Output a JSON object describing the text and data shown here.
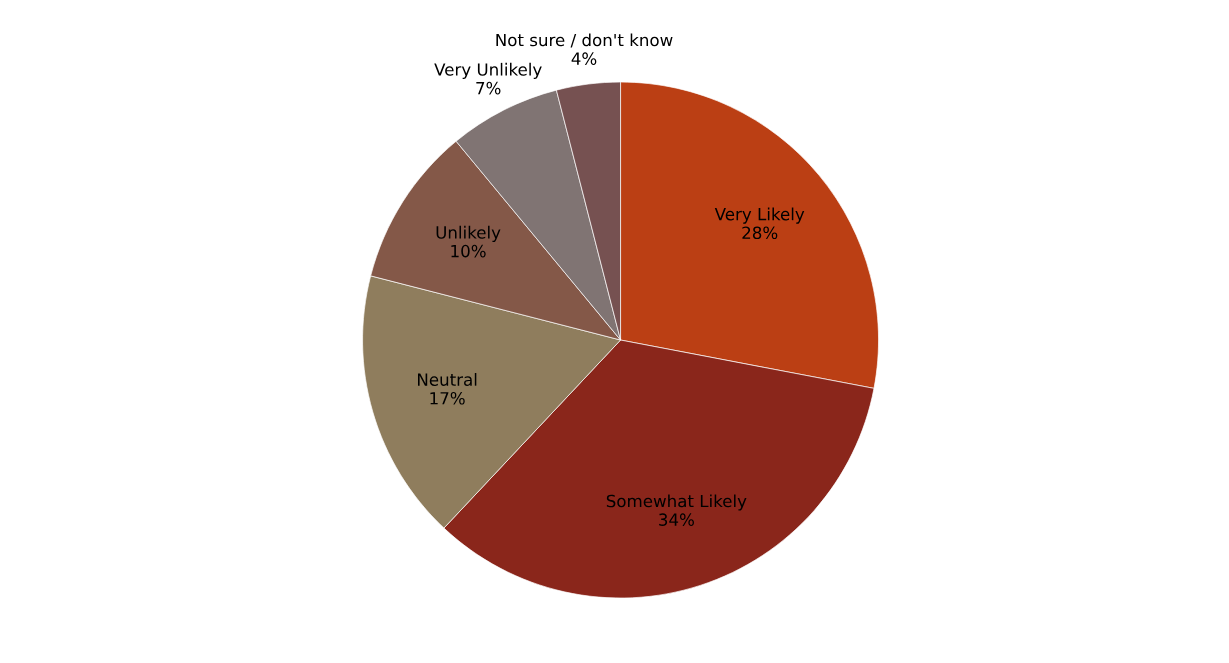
{
  "chart_data": {
    "type": "pie",
    "categories": [
      "Very Likely",
      "Somewhat Likely",
      "Neutral",
      "Unlikely",
      "Very Unlikely",
      "Not sure / don't know"
    ],
    "values": [
      28,
      34,
      17,
      10,
      7,
      4
    ],
    "value_labels": [
      "28%",
      "34%",
      "17%",
      "10%",
      "7%",
      "4%"
    ],
    "colors": [
      "#bb3f14",
      "#8a261b",
      "#8f7d5d",
      "#845848",
      "#807473",
      "#765151"
    ],
    "legend": false
  }
}
